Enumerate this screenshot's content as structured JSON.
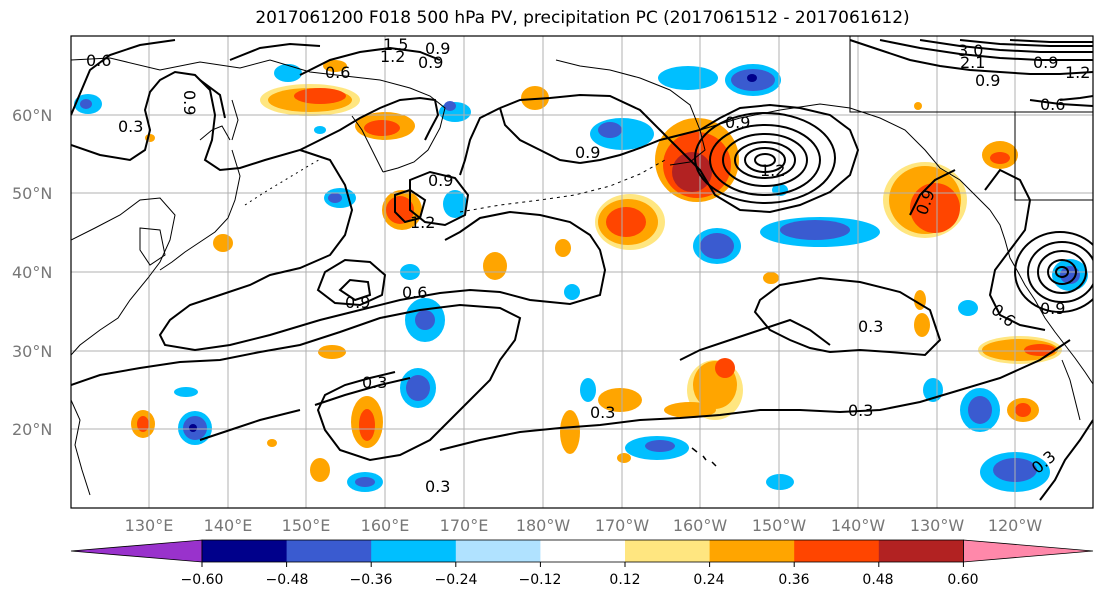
{
  "title": "2017061200 F018 500 hPa PV, precipitation PC (2017061512 - 2017061612)",
  "map": {
    "lat_labels": [
      "60°N",
      "50°N",
      "40°N",
      "30°N",
      "20°N"
    ],
    "lon_labels": [
      "130°E",
      "140°E",
      "150°E",
      "160°E",
      "170°E",
      "180°W",
      "170°W",
      "160°W",
      "150°W",
      "140°W",
      "130°W",
      "120°W"
    ],
    "contour_labels": [
      "0.6",
      "1.5",
      "1.2",
      "0.9",
      "0.6",
      "0.9",
      "0.3",
      "0.9",
      "0.9",
      "1.2",
      "0.9",
      "1.2",
      "0.9",
      "0.6",
      "0.3",
      "0.3",
      "0.3",
      "0.3",
      "0.3",
      "0.9",
      "0.9",
      "3.0",
      "2.1",
      "1.2",
      "0.9",
      "0.6",
      "0.9",
      "0.6",
      "0.9",
      "0.3"
    ],
    "colors": {
      "contour": "#000000",
      "coast": "#000000",
      "grid": "#b0b0b0"
    }
  },
  "colorbar": {
    "ticks": [
      "−0.60",
      "−0.48",
      "−0.36",
      "−0.24",
      "−0.12",
      "0.12",
      "0.24",
      "0.36",
      "0.48",
      "0.60"
    ],
    "colors": [
      "#9932cc",
      "#00008b",
      "#3a5bd0",
      "#00bfff",
      "#b0e2ff",
      "#ffffff",
      "#ffe680",
      "#ffa500",
      "#ff4500",
      "#b22222",
      "#ff88aa"
    ]
  }
}
